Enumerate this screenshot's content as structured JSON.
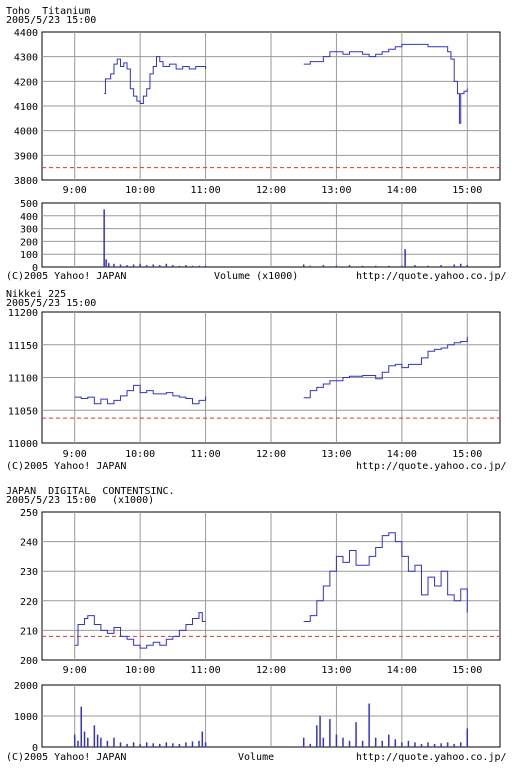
{
  "panels": [
    {
      "name": "Toho  Titanium",
      "date": "2005/5/23 15:00",
      "unit": "",
      "footer": {
        "copyright": "(C)2005 Yahoo! JAPAN",
        "volume_label": "Volume (x1000)",
        "url": "http://quote.yahoo.co.jp/"
      }
    },
    {
      "name": "Nikkei 225",
      "date": "2005/5/23 15:00",
      "unit": "",
      "footer": {
        "copyright": "(C)2005 Yahoo! JAPAN",
        "volume_label": "",
        "url": "http://quote.yahoo.co.jp/"
      }
    },
    {
      "name": "JAPAN  DIGITAL  CONTENTSINC.",
      "date": "2005/5/23 15:00",
      "unit": "(x1000)",
      "footer": {
        "copyright": "(C)2005 Yahoo! JAPAN",
        "volume_label": "Volume",
        "url": "http://quote.yahoo.co.jp/"
      }
    }
  ],
  "colors": {
    "line": "#3333cc",
    "reference": "#dd3333",
    "grid": "#999999",
    "axis": "#000000"
  },
  "chart_data": [
    {
      "type": "line",
      "title": "Toho  Titanium",
      "x_ticks": [
        "9:00",
        "10:00",
        "11:00",
        "12:00",
        "13:00",
        "14:00",
        "15:00"
      ],
      "xlim": [
        8.5,
        15.5
      ],
      "ylim": [
        3800,
        4400
      ],
      "y_ticks": [
        "4400",
        "4300",
        "4200",
        "4100",
        "4000",
        "3900",
        "3800"
      ],
      "reference_line": 3850,
      "grid": true,
      "series": [
        {
          "segments": [
            [
              [
                9.45,
                4150
              ],
              [
                9.47,
                4210
              ],
              [
                9.55,
                4230
              ],
              [
                9.6,
                4270
              ],
              [
                9.65,
                4290
              ],
              [
                9.7,
                4260
              ],
              [
                9.75,
                4275
              ],
              [
                9.8,
                4250
              ],
              [
                9.85,
                4170
              ],
              [
                9.9,
                4140
              ],
              [
                9.95,
                4120
              ],
              [
                10.0,
                4110
              ],
              [
                10.05,
                4140
              ],
              [
                10.1,
                4170
              ],
              [
                10.15,
                4230
              ],
              [
                10.2,
                4260
              ],
              [
                10.25,
                4300
              ],
              [
                10.3,
                4280
              ],
              [
                10.35,
                4260
              ],
              [
                10.45,
                4270
              ],
              [
                10.55,
                4250
              ],
              [
                10.65,
                4260
              ],
              [
                10.75,
                4250
              ],
              [
                10.85,
                4260
              ],
              [
                11.0,
                4250
              ]
            ],
            [
              [
                12.5,
                4270
              ],
              [
                12.6,
                4280
              ],
              [
                12.7,
                4280
              ],
              [
                12.8,
                4300
              ],
              [
                12.9,
                4320
              ],
              [
                13.0,
                4320
              ],
              [
                13.1,
                4310
              ],
              [
                13.2,
                4320
              ],
              [
                13.3,
                4320
              ],
              [
                13.4,
                4310
              ],
              [
                13.5,
                4300
              ],
              [
                13.6,
                4310
              ],
              [
                13.7,
                4320
              ],
              [
                13.8,
                4330
              ],
              [
                13.9,
                4340
              ],
              [
                14.0,
                4350
              ],
              [
                14.2,
                4350
              ],
              [
                14.4,
                4340
              ],
              [
                14.6,
                4340
              ],
              [
                14.7,
                4320
              ],
              [
                14.75,
                4290
              ],
              [
                14.8,
                4200
              ],
              [
                14.85,
                4150
              ],
              [
                14.88,
                4030
              ],
              [
                14.9,
                4150
              ],
              [
                14.95,
                4160
              ],
              [
                15.0,
                4170
              ]
            ]
          ]
        }
      ],
      "volume": {
        "ylim": [
          0,
          500
        ],
        "y_ticks": [
          "500",
          "400",
          "300",
          "200",
          "100",
          "0"
        ],
        "bars": [
          [
            9.45,
            450
          ],
          [
            9.48,
            60
          ],
          [
            9.52,
            30
          ],
          [
            9.6,
            25
          ],
          [
            9.7,
            20
          ],
          [
            9.8,
            15
          ],
          [
            9.9,
            20
          ],
          [
            10.0,
            25
          ],
          [
            10.1,
            15
          ],
          [
            10.2,
            20
          ],
          [
            10.3,
            15
          ],
          [
            10.4,
            25
          ],
          [
            10.5,
            15
          ],
          [
            10.6,
            10
          ],
          [
            10.7,
            15
          ],
          [
            10.8,
            10
          ],
          [
            10.9,
            10
          ],
          [
            11.0,
            10
          ],
          [
            12.5,
            20
          ],
          [
            12.6,
            10
          ],
          [
            12.8,
            15
          ],
          [
            13.0,
            10
          ],
          [
            13.2,
            15
          ],
          [
            13.4,
            10
          ],
          [
            13.6,
            10
          ],
          [
            13.8,
            10
          ],
          [
            14.0,
            10
          ],
          [
            14.05,
            140
          ],
          [
            14.2,
            15
          ],
          [
            14.4,
            10
          ],
          [
            14.6,
            15
          ],
          [
            14.8,
            20
          ],
          [
            14.9,
            25
          ],
          [
            15.0,
            15
          ]
        ]
      }
    },
    {
      "type": "line",
      "title": "Nikkei 225",
      "x_ticks": [
        "9:00",
        "10:00",
        "11:00",
        "12:00",
        "13:00",
        "14:00",
        "15:00"
      ],
      "xlim": [
        8.5,
        15.5
      ],
      "ylim": [
        11000,
        11200
      ],
      "y_ticks": [
        "11200",
        "11150",
        "11100",
        "11050",
        "11000"
      ],
      "reference_line": 11038,
      "grid": true,
      "series": [
        {
          "segments": [
            [
              [
                9.0,
                11070
              ],
              [
                9.1,
                11068
              ],
              [
                9.2,
                11070
              ],
              [
                9.3,
                11060
              ],
              [
                9.4,
                11067
              ],
              [
                9.5,
                11060
              ],
              [
                9.6,
                11065
              ],
              [
                9.7,
                11072
              ],
              [
                9.8,
                11080
              ],
              [
                9.9,
                11088
              ],
              [
                10.0,
                11077
              ],
              [
                10.1,
                11080
              ],
              [
                10.2,
                11075
              ],
              [
                10.4,
                11077
              ],
              [
                10.5,
                11072
              ],
              [
                10.6,
                11070
              ],
              [
                10.7,
                11068
              ],
              [
                10.8,
                11060
              ],
              [
                10.9,
                11065
              ],
              [
                11.0,
                11071
              ]
            ],
            [
              [
                12.5,
                11069
              ],
              [
                12.6,
                11080
              ],
              [
                12.7,
                11085
              ],
              [
                12.8,
                11090
              ],
              [
                12.9,
                11095
              ],
              [
                13.0,
                11095
              ],
              [
                13.1,
                11100
              ],
              [
                13.2,
                11102
              ],
              [
                13.4,
                11103
              ],
              [
                13.6,
                11098
              ],
              [
                13.7,
                11108
              ],
              [
                13.8,
                11118
              ],
              [
                13.9,
                11120
              ],
              [
                14.0,
                11115
              ],
              [
                14.1,
                11120
              ],
              [
                14.2,
                11120
              ],
              [
                14.3,
                11130
              ],
              [
                14.4,
                11140
              ],
              [
                14.5,
                11143
              ],
              [
                14.6,
                11145
              ],
              [
                14.7,
                11150
              ],
              [
                14.8,
                11153
              ],
              [
                14.9,
                11155
              ],
              [
                15.0,
                11162
              ]
            ]
          ]
        }
      ]
    },
    {
      "type": "line",
      "title": "JAPAN  DIGITAL  CONTENTSINC.",
      "x_ticks": [
        "9:00",
        "10:00",
        "11:00",
        "12:00",
        "13:00",
        "14:00",
        "15:00"
      ],
      "xlim": [
        8.5,
        15.5
      ],
      "ylim": [
        200,
        250
      ],
      "y_ticks": [
        "250",
        "240",
        "230",
        "220",
        "210",
        "200"
      ],
      "reference_line": 208,
      "grid": true,
      "series": [
        {
          "segments": [
            [
              [
                9.0,
                205
              ],
              [
                9.05,
                212
              ],
              [
                9.15,
                214
              ],
              [
                9.2,
                215
              ],
              [
                9.3,
                212
              ],
              [
                9.4,
                210
              ],
              [
                9.5,
                209
              ],
              [
                9.6,
                211
              ],
              [
                9.7,
                208
              ],
              [
                9.8,
                207
              ],
              [
                9.9,
                205
              ],
              [
                10.0,
                204
              ],
              [
                10.1,
                205
              ],
              [
                10.2,
                206
              ],
              [
                10.3,
                205
              ],
              [
                10.4,
                207
              ],
              [
                10.5,
                208
              ],
              [
                10.6,
                210
              ],
              [
                10.7,
                212
              ],
              [
                10.8,
                214
              ],
              [
                10.9,
                216
              ],
              [
                10.95,
                213
              ],
              [
                11.0,
                213
              ]
            ],
            [
              [
                12.5,
                213
              ],
              [
                12.6,
                215
              ],
              [
                12.7,
                220
              ],
              [
                12.8,
                225
              ],
              [
                12.9,
                230
              ],
              [
                13.0,
                235
              ],
              [
                13.1,
                233
              ],
              [
                13.2,
                237
              ],
              [
                13.3,
                232
              ],
              [
                13.4,
                232
              ],
              [
                13.5,
                235
              ],
              [
                13.6,
                238
              ],
              [
                13.7,
                242
              ],
              [
                13.8,
                243
              ],
              [
                13.9,
                240
              ],
              [
                14.0,
                235
              ],
              [
                14.1,
                230
              ],
              [
                14.2,
                232
              ],
              [
                14.3,
                222
              ],
              [
                14.4,
                228
              ],
              [
                14.5,
                225
              ],
              [
                14.6,
                230
              ],
              [
                14.7,
                222
              ],
              [
                14.8,
                220
              ],
              [
                14.9,
                224
              ],
              [
                15.0,
                216
              ]
            ]
          ]
        }
      ],
      "volume": {
        "ylim": [
          0,
          2000
        ],
        "y_ticks": [
          "2000",
          "1000",
          "0"
        ],
        "bars": [
          [
            9.0,
            400
          ],
          [
            9.05,
            200
          ],
          [
            9.1,
            1300
          ],
          [
            9.15,
            500
          ],
          [
            9.2,
            300
          ],
          [
            9.3,
            700
          ],
          [
            9.35,
            400
          ],
          [
            9.4,
            300
          ],
          [
            9.5,
            200
          ],
          [
            9.6,
            300
          ],
          [
            9.7,
            150
          ],
          [
            9.8,
            100
          ],
          [
            9.9,
            150
          ],
          [
            10.0,
            100
          ],
          [
            10.1,
            150
          ],
          [
            10.2,
            120
          ],
          [
            10.3,
            100
          ],
          [
            10.4,
            150
          ],
          [
            10.5,
            120
          ],
          [
            10.6,
            100
          ],
          [
            10.7,
            150
          ],
          [
            10.8,
            180
          ],
          [
            10.9,
            200
          ],
          [
            10.95,
            500
          ],
          [
            11.0,
            150
          ],
          [
            12.5,
            300
          ],
          [
            12.6,
            100
          ],
          [
            12.7,
            700
          ],
          [
            12.75,
            1000
          ],
          [
            12.8,
            300
          ],
          [
            12.9,
            900
          ],
          [
            13.0,
            400
          ],
          [
            13.1,
            300
          ],
          [
            13.2,
            200
          ],
          [
            13.3,
            800
          ],
          [
            13.4,
            200
          ],
          [
            13.5,
            1400
          ],
          [
            13.6,
            300
          ],
          [
            13.7,
            200
          ],
          [
            13.8,
            400
          ],
          [
            13.9,
            250
          ],
          [
            14.0,
            150
          ],
          [
            14.1,
            200
          ],
          [
            14.2,
            150
          ],
          [
            14.3,
            100
          ],
          [
            14.4,
            150
          ],
          [
            14.5,
            100
          ],
          [
            14.6,
            120
          ],
          [
            14.7,
            150
          ],
          [
            14.8,
            100
          ],
          [
            14.9,
            150
          ],
          [
            15.0,
            600
          ]
        ]
      }
    }
  ]
}
